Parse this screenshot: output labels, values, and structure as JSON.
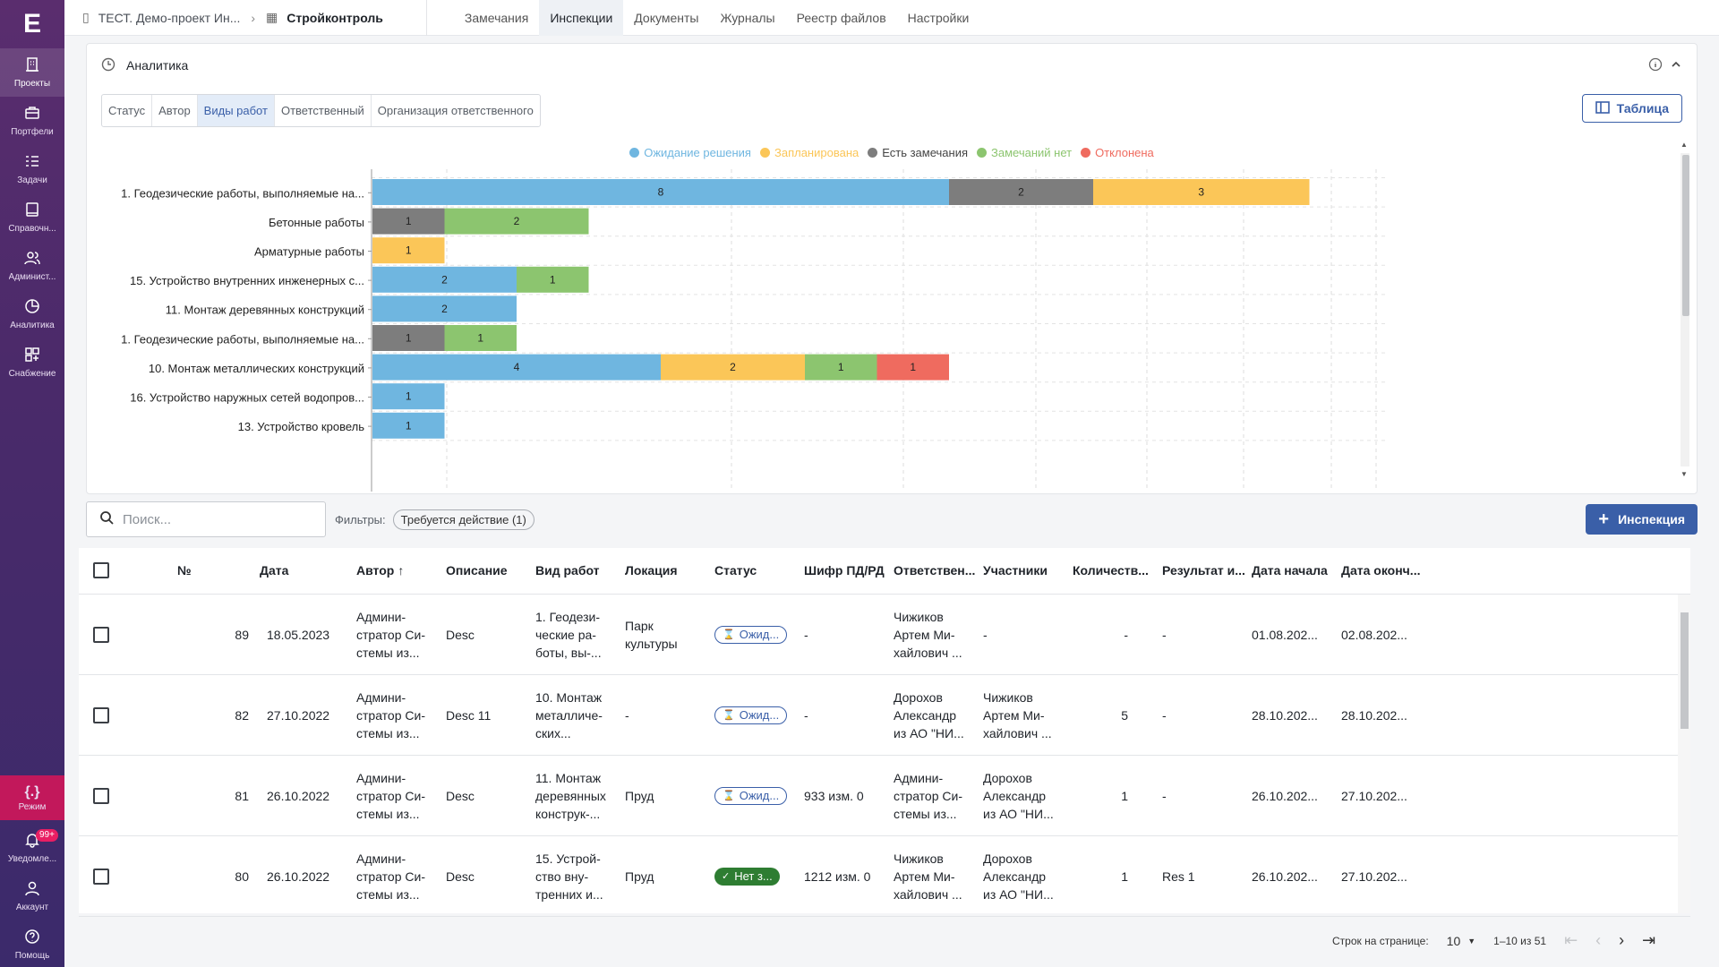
{
  "sidebar": {
    "logo": "E",
    "items": [
      {
        "label": "Проекты",
        "icon": "building-icon"
      },
      {
        "label": "Портфели",
        "icon": "briefcase-icon"
      },
      {
        "label": "Задачи",
        "icon": "tasks-icon"
      },
      {
        "label": "Справочн...",
        "icon": "book-icon"
      },
      {
        "label": "Админист...",
        "icon": "users-icon"
      },
      {
        "label": "Аналитика",
        "icon": "pie-icon"
      },
      {
        "label": "Снабжение",
        "icon": "supply-icon"
      }
    ],
    "mode": {
      "label": "Режим",
      "icon": "braces-icon"
    },
    "bottom": [
      {
        "label": "Уведомле...",
        "icon": "bell-icon",
        "badge": "99+"
      },
      {
        "label": "Аккаунт",
        "icon": "user-icon"
      },
      {
        "label": "Помощь",
        "icon": "help-icon"
      }
    ]
  },
  "topbar": {
    "project": "ТЕСТ. Демо-проект Ин...",
    "separator": "›",
    "module": "Стройконтроль",
    "tabs": [
      "Замечания",
      "Инспекции",
      "Документы",
      "Журналы",
      "Реестр файлов",
      "Настройки"
    ],
    "active_tab": "Инспекции"
  },
  "analytics": {
    "title": "Аналитика",
    "segments": [
      "Статус",
      "Автор",
      "Виды работ",
      "Ответственный",
      "Организация ответственного"
    ],
    "active_segment": "Виды работ",
    "table_button": "Таблица"
  },
  "chart_data": {
    "type": "bar",
    "orientation": "horizontal",
    "stacked": true,
    "categories": [
      "1. Геодезические работы, выполняемые на...",
      "Бетонные работы",
      "Арматурные работы",
      "15. Устройство внутренних инженерных с...",
      "11. Монтаж деревянных конструкций",
      "1. Геодезические работы, выполняемые на...",
      "10. Монтаж металлических конструкций",
      "16. Устройство наружных сетей водопров...",
      "13. Устройство кровель"
    ],
    "series": [
      {
        "name": "Ожидание решения",
        "color": "#6fb6e0",
        "values": [
          8,
          0,
          0,
          2,
          2,
          0,
          4,
          1,
          1
        ]
      },
      {
        "name": "Запланирована",
        "color": "#fbc658",
        "values": [
          3,
          0,
          1,
          0,
          0,
          0,
          2,
          0,
          0
        ]
      },
      {
        "name": "Есть замечания",
        "color": "#7d7d7d",
        "values": [
          2,
          1,
          0,
          0,
          0,
          1,
          0,
          0,
          0
        ]
      },
      {
        "name": "Замечаний нет",
        "color": "#8cc56f",
        "values": [
          0,
          2,
          0,
          1,
          0,
          1,
          1,
          0,
          0
        ]
      },
      {
        "name": "Отклонена",
        "color": "#ef6b5f",
        "values": [
          0,
          0,
          0,
          0,
          0,
          0,
          1,
          0,
          0
        ]
      }
    ],
    "order": [
      "Ожидание решения",
      "Есть замечания",
      "Запланирована",
      "Замечаний нет",
      "Отклонена"
    ],
    "legend_position": "top-center",
    "grid": true
  },
  "toolbar": {
    "search_placeholder": "Поиск...",
    "filters_label": "Фильтры:",
    "filter_chip": "Требуется действие (1)",
    "add_button": "Инспекция"
  },
  "table": {
    "columns": [
      "№",
      "Дата",
      "Автор",
      "Описание",
      "Вид работ",
      "Локация",
      "Статус",
      "Шифр ПД/РД",
      "Ответствен...",
      "Участники",
      "Количеств...",
      "Результат и...",
      "Дата начала",
      "Дата оконч..."
    ],
    "rows": [
      {
        "num": "89",
        "date": "18.05.2023",
        "author": [
          "Админи-",
          "стратор Си-",
          "стемы из..."
        ],
        "desc": "Desc",
        "work": [
          "1. Геодези-",
          "ческие ра-",
          "боты, вы-..."
        ],
        "loc": [
          "Парк",
          "культуры"
        ],
        "status": "Ожид...",
        "status_type": "wait",
        "code": "-",
        "resp": [
          "Чижиков",
          "Артем Ми-",
          "хайлович ..."
        ],
        "parts": [
          "-"
        ],
        "qty": "-",
        "result": "-",
        "start": "01.08.202...",
        "end": "02.08.202..."
      },
      {
        "num": "82",
        "date": "27.10.2022",
        "author": [
          "Админи-",
          "стратор Си-",
          "стемы из..."
        ],
        "desc": "Desc 11",
        "work": [
          "10. Монтаж",
          "металличе-",
          "ских..."
        ],
        "loc": [
          "-"
        ],
        "status": "Ожид...",
        "status_type": "wait",
        "code": "-",
        "resp": [
          "Дорохов",
          "Александр",
          "из АО \"НИ..."
        ],
        "parts": [
          "Чижиков",
          "Артем Ми-",
          "хайлович ..."
        ],
        "qty": "5",
        "result": "-",
        "start": "28.10.202...",
        "end": "28.10.202..."
      },
      {
        "num": "81",
        "date": "26.10.2022",
        "author": [
          "Админи-",
          "стратор Си-",
          "стемы из..."
        ],
        "desc": "Desc",
        "work": [
          "11. Монтаж",
          "деревянных",
          "конструк-..."
        ],
        "loc": [
          "Пруд"
        ],
        "status": "Ожид...",
        "status_type": "wait",
        "code": "933 изм. 0",
        "resp": [
          "Админи-",
          "стратор Си-",
          "стемы из..."
        ],
        "parts": [
          "Дорохов",
          "Александр",
          "из АО \"НИ..."
        ],
        "qty": "1",
        "result": "-",
        "start": "26.10.202...",
        "end": "27.10.202..."
      },
      {
        "num": "80",
        "date": "26.10.2022",
        "author": [
          "Админи-",
          "стратор Си-",
          "стемы из..."
        ],
        "desc": "Desc",
        "work": [
          "15. Устрой-",
          "ство вну-",
          "тренних и..."
        ],
        "loc": [
          "Пруд"
        ],
        "status": "Нет з...",
        "status_type": "ok",
        "code": "1212 изм. 0",
        "resp": [
          "Чижиков",
          "Артем Ми-",
          "хайлович ..."
        ],
        "parts": [
          "Дорохов",
          "Александр",
          "из АО \"НИ..."
        ],
        "qty": "1",
        "result": "Res 1",
        "start": "26.10.202...",
        "end": "27.10.202..."
      }
    ]
  },
  "pagination": {
    "rows_label": "Строк на странице:",
    "rows_value": "10",
    "range": "1–10 из 51"
  }
}
